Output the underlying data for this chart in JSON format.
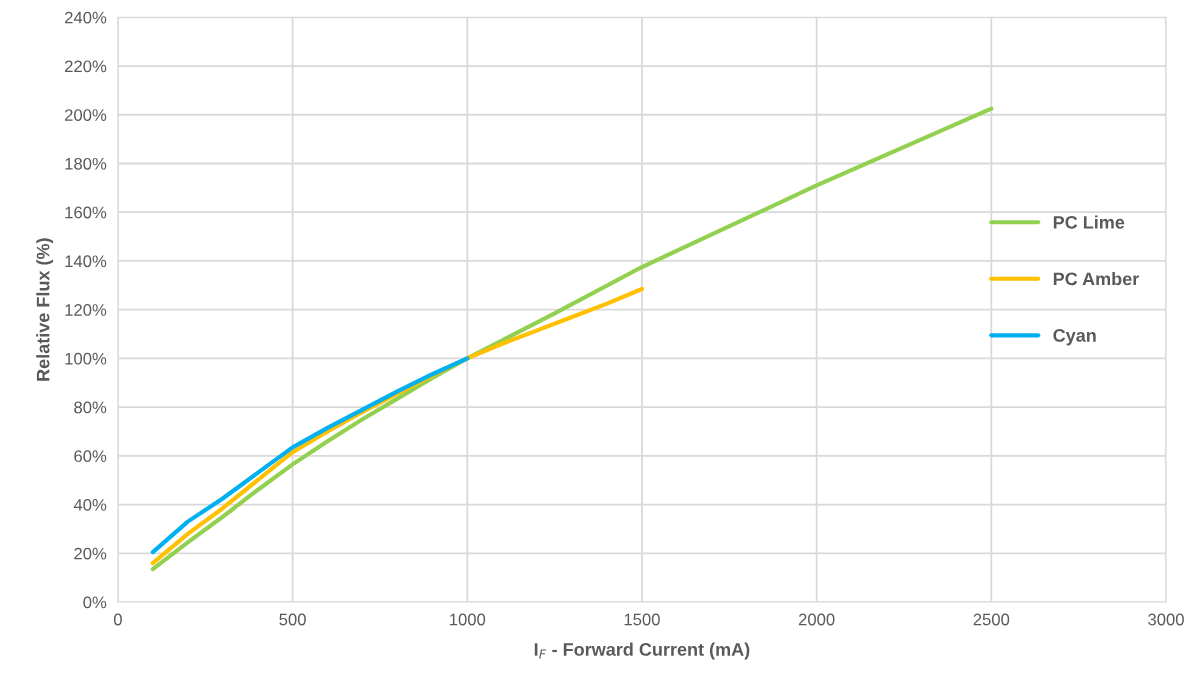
{
  "chart_data": {
    "type": "line",
    "xlabel": "I$_{F}$ - Forward Current (mA)",
    "ylabel": "Relative Flux (%)",
    "xlim": [
      0,
      3000
    ],
    "xticks": [
      0,
      500,
      1000,
      1500,
      2000,
      2500,
      3000
    ],
    "ylim": [
      0,
      240
    ],
    "yticks": [
      {
        "value": 0,
        "label": "0%"
      },
      {
        "value": 20,
        "label": "20%"
      },
      {
        "value": 40,
        "label": "40%"
      },
      {
        "value": 60,
        "label": "60%"
      },
      {
        "value": 80,
        "label": "80%"
      },
      {
        "value": 100,
        "label": "100%"
      },
      {
        "value": 120,
        "label": "120%"
      },
      {
        "value": 140,
        "label": "140%"
      },
      {
        "value": 160,
        "label": "160%"
      },
      {
        "value": 180,
        "label": "180%"
      },
      {
        "value": 200,
        "label": "200%"
      },
      {
        "value": 220,
        "label": "220%"
      },
      {
        "value": 240,
        "label": "240%"
      }
    ],
    "grid": true,
    "legend": "right",
    "marker": "none",
    "line_style": "solid",
    "series": [
      {
        "name": "PC Lime",
        "color": "#92d050",
        "x": [
          100,
          200,
          300,
          400,
          500,
          600,
          700,
          800,
          900,
          1000,
          1250,
          1500,
          2000,
          2500
        ],
        "values": [
          13.5,
          24.5,
          35,
          46,
          56.5,
          66,
          75,
          83.5,
          92,
          100,
          118.5,
          137.5,
          171,
          202.5
        ]
      },
      {
        "name": "PC Amber",
        "color": "#ffc000",
        "x": [
          100,
          200,
          300,
          400,
          500,
          600,
          700,
          800,
          900,
          1000,
          1100,
          1200,
          1300,
          1400,
          1500
        ],
        "values": [
          16,
          28,
          38.5,
          50,
          61.5,
          70,
          78,
          85.5,
          93,
          100,
          106,
          111.5,
          117,
          122.5,
          128.5
        ]
      },
      {
        "name": "Cyan",
        "color": "#00b0f0",
        "x": [
          100,
          200,
          300,
          400,
          500,
          600,
          700,
          800,
          900,
          1000
        ],
        "values": [
          20.5,
          33,
          42.5,
          53,
          63.5,
          71.5,
          79,
          86.5,
          93.5,
          100
        ]
      }
    ]
  }
}
